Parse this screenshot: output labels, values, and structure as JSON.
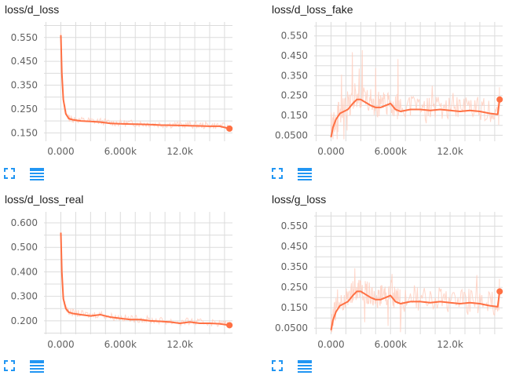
{
  "colors": {
    "line": "#ff7043",
    "line_raw": "#ffccbc",
    "grid": "#dcdcdc",
    "tool_icon": "#2196f3"
  },
  "tools": {
    "expand_icon": "fit-screen-icon",
    "data_icon": "data-table-icon"
  },
  "chart_data": [
    {
      "type": "line",
      "title": "loss/d_loss",
      "x_ticks": [
        "0.000",
        "6.000k",
        "12.0k"
      ],
      "x_tick_values": [
        0,
        6000,
        12000
      ],
      "y_ticks": [
        "0.550",
        "0.450",
        "0.350",
        "0.250",
        "0.150"
      ],
      "y_tick_values": [
        0.55,
        0.45,
        0.35,
        0.25,
        0.15
      ],
      "xlim": [
        -1700,
        17300
      ],
      "ylim": [
        0.115,
        0.615
      ],
      "grid": true,
      "series": [
        {
          "smoothed": true,
          "x": [
            0,
            100,
            250,
            500,
            800,
            1200,
            2000,
            3000,
            4000,
            5000,
            6000,
            7000,
            8000,
            9000,
            10000,
            11000,
            12000,
            13000,
            14000,
            15000,
            16000,
            17000
          ],
          "y": [
            0.56,
            0.4,
            0.29,
            0.23,
            0.21,
            0.205,
            0.2,
            0.198,
            0.195,
            0.19,
            0.188,
            0.187,
            0.186,
            0.185,
            0.183,
            0.182,
            0.181,
            0.18,
            0.179,
            0.178,
            0.178,
            0.168
          ]
        }
      ]
    },
    {
      "type": "line",
      "title": "loss/d_loss_fake",
      "x_ticks": [
        "0.000",
        "6.000k",
        "12.0k"
      ],
      "x_tick_values": [
        0,
        6000,
        12000
      ],
      "y_ticks": [
        "0.550",
        "0.450",
        "0.350",
        "0.250",
        "0.150",
        "0.0500"
      ],
      "y_tick_values": [
        0.55,
        0.45,
        0.35,
        0.25,
        0.15,
        0.05
      ],
      "xlim": [
        -1700,
        17300
      ],
      "ylim": [
        0.02,
        0.62
      ],
      "grid": true,
      "series": [
        {
          "smoothed": true,
          "x": [
            0,
            200,
            500,
            900,
            1300,
            1700,
            2200,
            2600,
            3000,
            3500,
            4000,
            4500,
            5000,
            5500,
            6000,
            6500,
            7000,
            8000,
            9000,
            10000,
            11000,
            12000,
            13000,
            14000,
            15000,
            16000,
            16800,
            17000
          ],
          "y": [
            0.04,
            0.09,
            0.13,
            0.16,
            0.17,
            0.18,
            0.21,
            0.23,
            0.23,
            0.215,
            0.2,
            0.19,
            0.19,
            0.2,
            0.21,
            0.18,
            0.17,
            0.18,
            0.18,
            0.175,
            0.18,
            0.175,
            0.17,
            0.175,
            0.17,
            0.16,
            0.155,
            0.23
          ]
        }
      ]
    },
    {
      "type": "line",
      "title": "loss/d_loss_real",
      "x_ticks": [
        "0.000",
        "6.000k",
        "12.0k"
      ],
      "x_tick_values": [
        0,
        6000,
        12000
      ],
      "y_ticks": [
        "0.600",
        "0.500",
        "0.400",
        "0.300",
        "0.200"
      ],
      "y_tick_values": [
        0.6,
        0.5,
        0.4,
        0.3,
        0.2
      ],
      "xlim": [
        -1700,
        17300
      ],
      "ylim": [
        0.145,
        0.645
      ],
      "grid": true,
      "series": [
        {
          "smoothed": true,
          "x": [
            0,
            100,
            250,
            500,
            800,
            1200,
            2000,
            3000,
            4000,
            5000,
            6000,
            7000,
            8000,
            9000,
            10000,
            11000,
            12000,
            13000,
            14000,
            15000,
            16000,
            17000
          ],
          "y": [
            0.56,
            0.4,
            0.29,
            0.25,
            0.235,
            0.23,
            0.225,
            0.22,
            0.225,
            0.215,
            0.21,
            0.205,
            0.205,
            0.2,
            0.198,
            0.195,
            0.19,
            0.195,
            0.19,
            0.19,
            0.188,
            0.182
          ]
        }
      ]
    },
    {
      "type": "line",
      "title": "loss/g_loss",
      "x_ticks": [
        "0.000",
        "6.000k",
        "12.0k"
      ],
      "x_tick_values": [
        0,
        6000,
        12000
      ],
      "y_ticks": [
        "0.550",
        "0.450",
        "0.350",
        "0.250",
        "0.150",
        "0.0500"
      ],
      "y_tick_values": [
        0.55,
        0.45,
        0.35,
        0.25,
        0.15,
        0.05
      ],
      "xlim": [
        -1700,
        17300
      ],
      "ylim": [
        0.02,
        0.62
      ],
      "grid": true,
      "series": [
        {
          "smoothed": true,
          "x": [
            0,
            200,
            500,
            900,
            1300,
            1700,
            2200,
            2600,
            3000,
            3500,
            4000,
            4500,
            5000,
            5500,
            6000,
            6500,
            7000,
            8000,
            9000,
            10000,
            11000,
            12000,
            13000,
            14000,
            15000,
            16000,
            16800,
            17000
          ],
          "y": [
            0.04,
            0.09,
            0.13,
            0.16,
            0.17,
            0.18,
            0.21,
            0.23,
            0.23,
            0.215,
            0.2,
            0.19,
            0.19,
            0.2,
            0.21,
            0.18,
            0.17,
            0.18,
            0.18,
            0.175,
            0.18,
            0.175,
            0.17,
            0.175,
            0.17,
            0.16,
            0.155,
            0.23
          ]
        }
      ]
    }
  ]
}
